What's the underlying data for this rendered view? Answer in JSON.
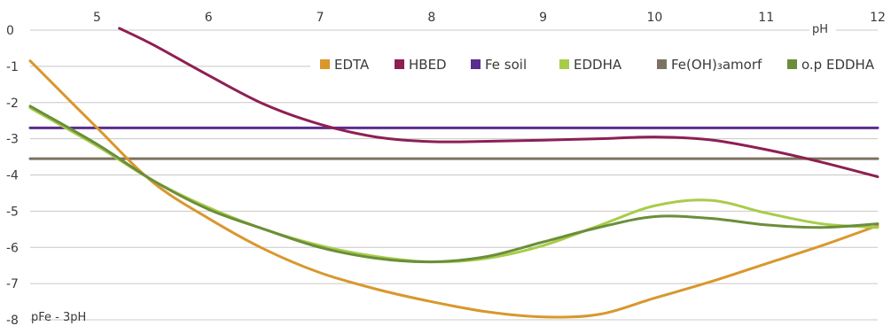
{
  "chart_data": {
    "type": "line",
    "xlabel": "pH",
    "ylabel": "pFe - 3pH",
    "xlim": [
      4.4,
      12
    ],
    "ylim": [
      -8,
      0
    ],
    "x_ticks": [
      5,
      6,
      7,
      8,
      9,
      10,
      11,
      12
    ],
    "y_ticks": [
      0,
      -1,
      -2,
      -3,
      -4,
      -5,
      -6,
      -7,
      -8
    ],
    "x_axis_position": "top",
    "grid": "horizontal",
    "legend_position": "top-right",
    "series": [
      {
        "name": "EDTA",
        "color": "#d9972c",
        "x": [
          4.4,
          5.0,
          5.5,
          6.0,
          6.5,
          7.0,
          7.5,
          8.0,
          8.5,
          9.0,
          9.5,
          10.0,
          10.5,
          11.0,
          11.5,
          12.0
        ],
        "y": [
          -0.85,
          -2.7,
          -4.2,
          -5.2,
          -6.05,
          -6.7,
          -7.15,
          -7.5,
          -7.78,
          -7.92,
          -7.85,
          -7.4,
          -6.95,
          -6.45,
          -5.95,
          -5.4
        ]
      },
      {
        "name": "HBED",
        "color": "#8e1f52",
        "x": [
          5.2,
          5.5,
          6.0,
          6.5,
          7.0,
          7.5,
          8.0,
          8.5,
          9.0,
          9.5,
          10.0,
          10.5,
          11.0,
          11.5,
          12.0
        ],
        "y": [
          0.05,
          -0.4,
          -1.25,
          -2.05,
          -2.6,
          -2.95,
          -3.08,
          -3.07,
          -3.04,
          -3.0,
          -2.95,
          -3.03,
          -3.3,
          -3.65,
          -4.05
        ]
      },
      {
        "name": "Fe soil",
        "color": "#5b2d8e",
        "x": [
          4.4,
          12.0
        ],
        "y": [
          -2.7,
          -2.7
        ]
      },
      {
        "name": "EDDHA",
        "color": "#a8cc4a",
        "x": [
          4.4,
          5.0,
          5.5,
          6.0,
          6.5,
          7.0,
          7.5,
          8.0,
          8.5,
          9.0,
          9.5,
          10.0,
          10.5,
          11.0,
          11.5,
          12.0
        ],
        "y": [
          -2.15,
          -3.2,
          -4.15,
          -4.9,
          -5.5,
          -5.95,
          -6.25,
          -6.4,
          -6.3,
          -5.95,
          -5.4,
          -4.85,
          -4.7,
          -5.05,
          -5.35,
          -5.45
        ]
      },
      {
        "name": "Fe(OH)₃amorf",
        "color": "#7c7261",
        "x": [
          4.4,
          12.0
        ],
        "y": [
          -3.55,
          -3.55
        ]
      },
      {
        "name": "o.p EDDHA",
        "color": "#6b8e3a",
        "x": [
          4.4,
          5.0,
          5.5,
          6.0,
          6.5,
          7.0,
          7.5,
          8.0,
          8.5,
          9.0,
          9.5,
          10.0,
          10.5,
          11.0,
          11.5,
          12.0
        ],
        "y": [
          -2.1,
          -3.15,
          -4.15,
          -4.95,
          -5.5,
          -6.0,
          -6.3,
          -6.4,
          -6.25,
          -5.85,
          -5.45,
          -5.15,
          -5.2,
          -5.38,
          -5.45,
          -5.35
        ]
      }
    ]
  }
}
